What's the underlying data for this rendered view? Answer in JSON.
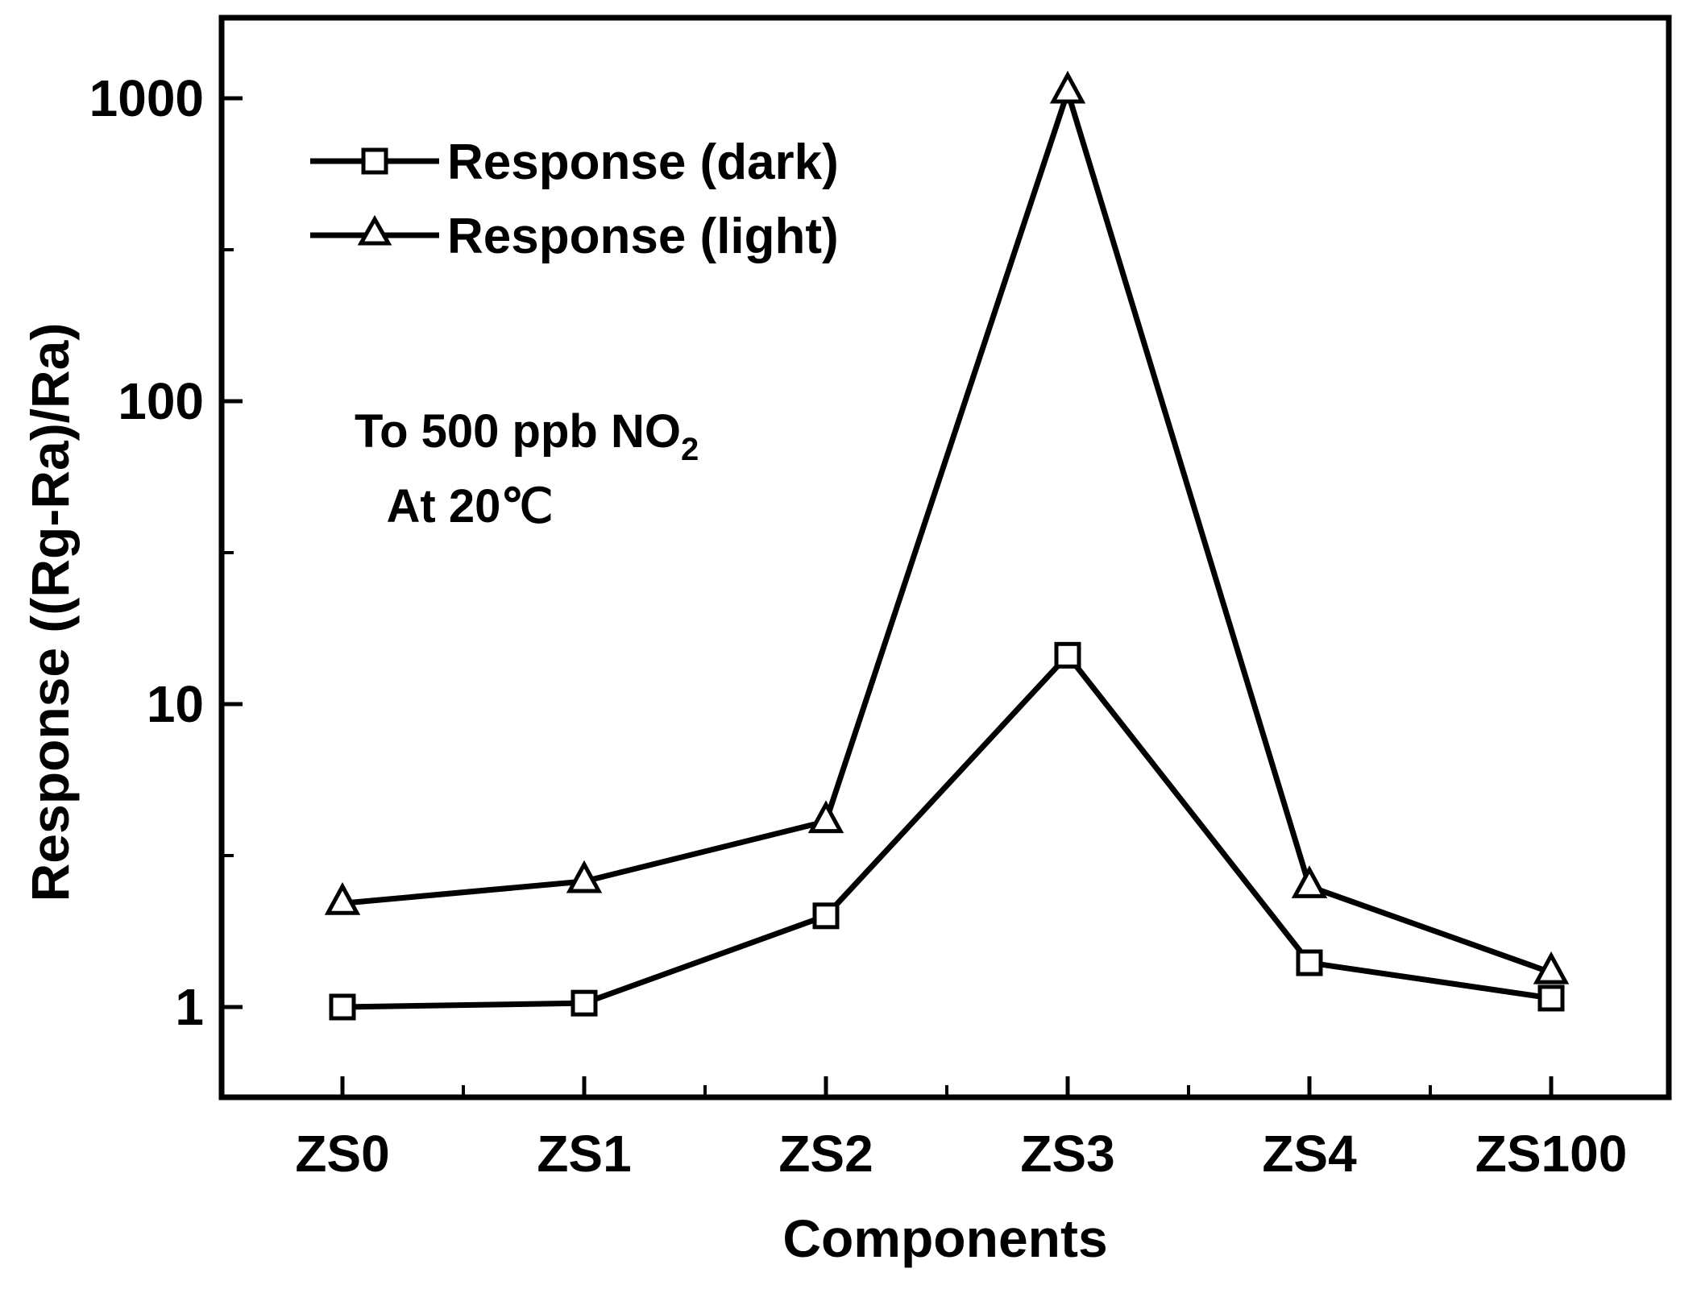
{
  "chart_data": {
    "type": "line",
    "title": "",
    "xlabel": "Components",
    "ylabel": "Response ((Rg-Ra)/Ra)",
    "yscale": "log",
    "ylim": [
      0.5,
      2000
    ],
    "yticks": [
      1,
      10,
      100,
      1000
    ],
    "ytick_labels": [
      "1",
      "10",
      "100",
      "1000"
    ],
    "categories": [
      "ZS0",
      "ZS1",
      "ZS2",
      "ZS3",
      "ZS4",
      "ZS100"
    ],
    "series": [
      {
        "name": "Response (dark)",
        "marker": "square",
        "values": [
          1.0,
          1.03,
          2.0,
          14.5,
          1.4,
          1.07
        ]
      },
      {
        "name": "Response (light)",
        "marker": "triangle",
        "values": [
          2.2,
          2.6,
          4.1,
          1050,
          2.5,
          1.3
        ]
      }
    ],
    "annotation": {
      "line1": "To 500 ppb NO",
      "subscript": "2",
      "line2": "At 20℃"
    },
    "legend_position": "top-left",
    "grid": false
  }
}
